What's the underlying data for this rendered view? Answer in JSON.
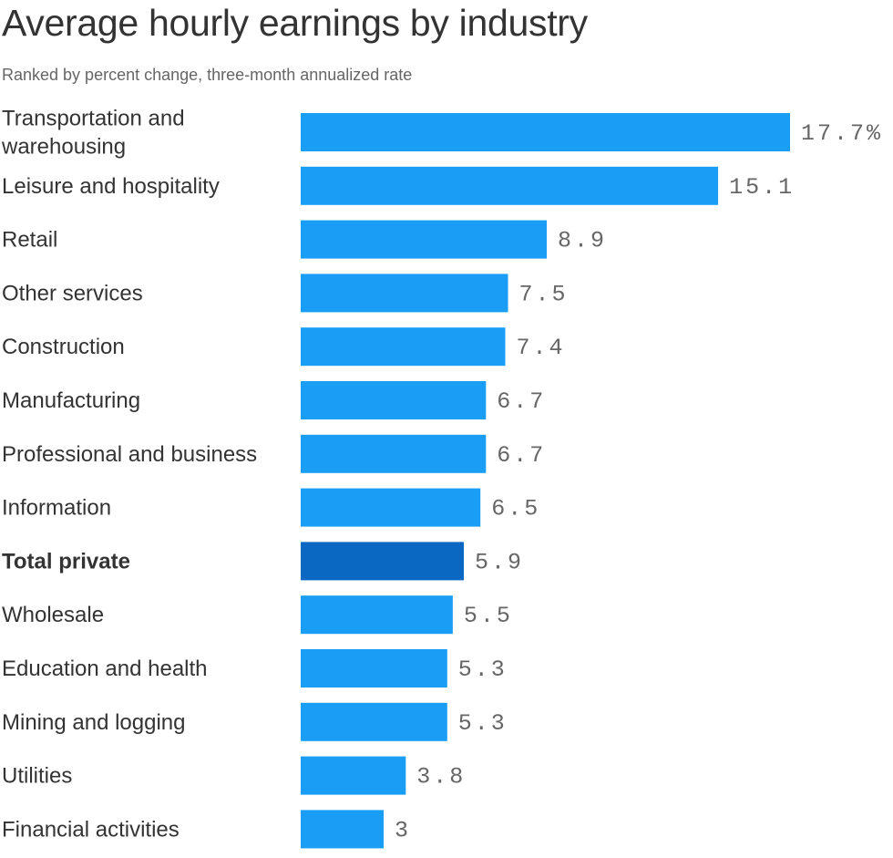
{
  "header": {
    "title": "Average hourly earnings by industry",
    "subtitle": "Ranked by percent change, three-month annualized rate"
  },
  "colors": {
    "bar": "#1a9ef5",
    "highlight_bar": "#0a68c2"
  },
  "chart_data": {
    "type": "bar",
    "orientation": "horizontal",
    "title": "Average hourly earnings by industry",
    "subtitle": "Ranked by percent change, three-month annualized rate",
    "xlabel": "",
    "ylabel": "",
    "xlim": [
      0,
      17.7
    ],
    "grid": false,
    "categories": [
      "Transportation and warehousing",
      "Leisure and hospitality",
      "Retail",
      "Other services",
      "Construction",
      "Manufacturing",
      "Professional and business",
      "Information",
      "Total private",
      "Wholesale",
      "Education and health",
      "Mining and logging",
      "Utilities",
      "Financial activities"
    ],
    "values": [
      17.7,
      15.1,
      8.9,
      7.5,
      7.4,
      6.7,
      6.7,
      6.5,
      5.9,
      5.5,
      5.3,
      5.3,
      3.8,
      3
    ],
    "data_labels": [
      "17.7%",
      "15.1",
      "8.9",
      "7.5",
      "7.4",
      "6.7",
      "6.7",
      "6.5",
      "5.9",
      "5.5",
      "5.3",
      "5.3",
      "3.8",
      "3"
    ],
    "highlight": [
      "Total private"
    ]
  }
}
